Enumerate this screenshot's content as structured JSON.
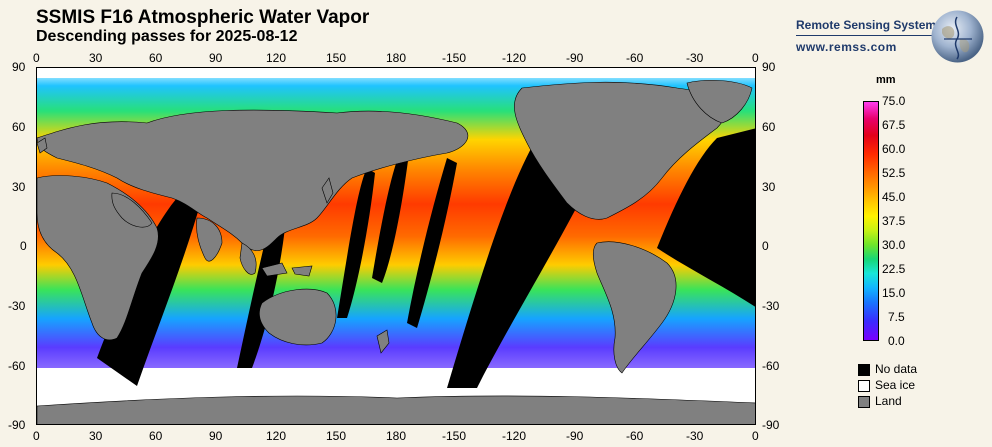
{
  "header": {
    "title": "SSMIS F16 Atmospheric Water Vapor",
    "subtitle": "Descending passes for 2025-08-12"
  },
  "branding": {
    "name": "Remote Sensing Systems",
    "url": "www.remss.com"
  },
  "map": {
    "lon_ticks_top": [
      "0",
      "30",
      "60",
      "90",
      "120",
      "150",
      "180",
      "-150",
      "-120",
      "-90",
      "-60",
      "-30",
      "0"
    ],
    "lon_ticks_bottom": [
      "0",
      "30",
      "60",
      "90",
      "120",
      "150",
      "180",
      "-150",
      "-120",
      "-90",
      "-60",
      "-30",
      "0"
    ],
    "lat_ticks_left": [
      "90",
      "60",
      "30",
      "0",
      "-30",
      "-60",
      "-90"
    ],
    "lat_ticks_right": [
      "90",
      "60",
      "30",
      "0",
      "-30",
      "-60",
      "-90"
    ],
    "colors": {
      "land": "#808080",
      "no_data": "#000000",
      "sea_ice": "#ffffff"
    }
  },
  "colorbar": {
    "unit": "mm",
    "labels": [
      "75.0",
      "67.5",
      "60.0",
      "52.5",
      "45.0",
      "37.5",
      "30.0",
      "22.5",
      "15.0",
      "7.5",
      "0.0"
    ],
    "min": 0.0,
    "max": 75.0
  },
  "legend": {
    "items": [
      {
        "label": "No data",
        "color": "#000000"
      },
      {
        "label": "Sea ice",
        "color": "#ffffff"
      },
      {
        "label": "Land",
        "color": "#808080"
      }
    ]
  }
}
